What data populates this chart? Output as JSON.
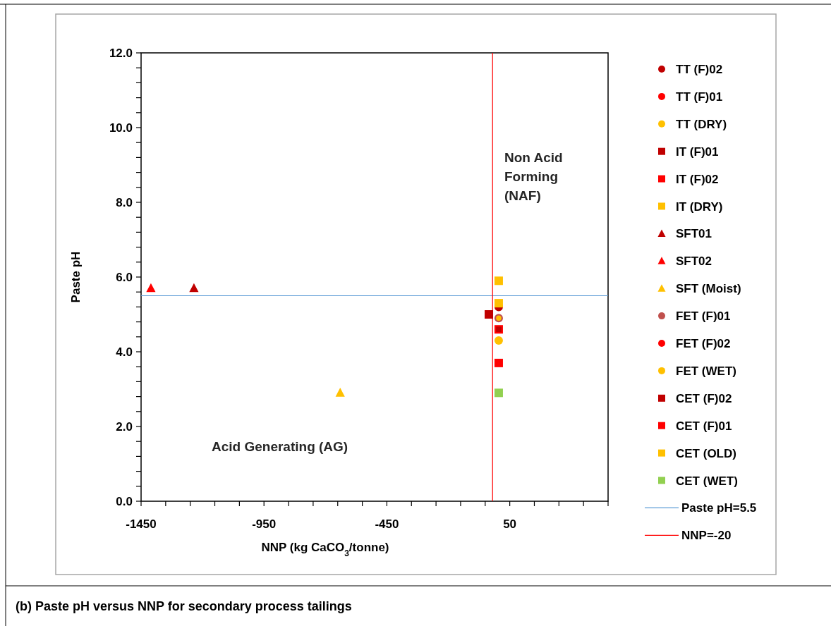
{
  "chart_data": {
    "type": "scatter",
    "title": "(b)  Paste pH versus NNP for secondary process tailings",
    "xlabel": "NNP  (kg CaCO$_{3}$/tonne)",
    "ylabel": "Paste pH",
    "xlim": [
      -1450,
      450
    ],
    "ylim": [
      0,
      12
    ],
    "xticks": [
      -1450,
      {
        "value": -1350,
        "label": null
      },
      {
        "value": -1250,
        "label": null
      },
      {
        "value": -1150,
        "label": null
      },
      {
        "value": -1050,
        "label": null
      },
      -950,
      {
        "value": -850,
        "label": null
      },
      {
        "value": -750,
        "label": null
      },
      {
        "value": -650,
        "label": null
      },
      {
        "value": -550,
        "label": null
      },
      -450,
      {
        "value": -350,
        "label": null
      },
      {
        "value": -250,
        "label": null
      },
      {
        "value": -150,
        "label": null
      },
      {
        "value": -50,
        "label": null
      },
      50,
      {
        "value": 150,
        "label": null
      },
      {
        "value": 250,
        "label": null
      },
      {
        "value": 350,
        "label": null
      },
      {
        "value": 450,
        "label": null
      }
    ],
    "yticks": [
      {
        "value": 0,
        "label": "0.0"
      },
      {
        "value": 0.4,
        "label": null
      },
      {
        "value": 0.8,
        "label": null
      },
      {
        "value": 1.2,
        "label": null
      },
      {
        "value": 1.6,
        "label": null
      },
      {
        "value": 2,
        "label": "2.0"
      },
      {
        "value": 2.4,
        "label": null
      },
      {
        "value": 2.8,
        "label": null
      },
      {
        "value": 3.2,
        "label": null
      },
      {
        "value": 3.6,
        "label": null
      },
      {
        "value": 4,
        "label": "4.0"
      },
      {
        "value": 4.4,
        "label": null
      },
      {
        "value": 4.8,
        "label": null
      },
      {
        "value": 5.2,
        "label": null
      },
      {
        "value": 5.6,
        "label": null
      },
      {
        "value": 6,
        "label": "6.0"
      },
      {
        "value": 6.4,
        "label": null
      },
      {
        "value": 6.8,
        "label": null
      },
      {
        "value": 7.2,
        "label": null
      },
      {
        "value": 7.6,
        "label": null
      },
      {
        "value": 8,
        "label": "8.0"
      },
      {
        "value": 8.4,
        "label": null
      },
      {
        "value": 8.8,
        "label": null
      },
      {
        "value": 9.2,
        "label": null
      },
      {
        "value": 9.6,
        "label": null
      },
      {
        "value": 10,
        "label": "10.0"
      },
      {
        "value": 10.4,
        "label": null
      },
      {
        "value": 10.8,
        "label": null
      },
      {
        "value": 11.2,
        "label": null
      },
      {
        "value": 11.6,
        "label": null
      },
      {
        "value": 12,
        "label": "12.0"
      }
    ],
    "grid": false,
    "legend": "right",
    "series": [
      {
        "name": "TT (F)02",
        "color": "#c00000",
        "marker": "circle",
        "x": [
          5
        ],
        "values": [
          5.2
        ]
      },
      {
        "name": "TT (F)01",
        "color": "#ff0000",
        "marker": "circle",
        "x": [
          null
        ],
        "values": [
          null
        ]
      },
      {
        "name": "TT (DRY)",
        "color": "#ffc000",
        "marker": "circle",
        "x": [
          5
        ],
        "values": [
          4.3
        ]
      },
      {
        "name": "IT (F)01",
        "color": "#c00000",
        "marker": "square",
        "x": [
          -35
        ],
        "values": [
          5.0
        ]
      },
      {
        "name": "IT (F)02",
        "color": "#ff0000",
        "marker": "square",
        "x": [
          5
        ],
        "values": [
          4.6
        ]
      },
      {
        "name": "IT (DRY)",
        "color": "#ffc000",
        "marker": "square",
        "x": [
          5
        ],
        "values": [
          5.3
        ]
      },
      {
        "name": "SFT01",
        "color": "#c00000",
        "marker": "triangle",
        "x": [
          -1235
        ],
        "values": [
          5.7
        ]
      },
      {
        "name": "SFT02",
        "color": "#ff0000",
        "marker": "triangle",
        "x": [
          -1410
        ],
        "values": [
          5.7
        ]
      },
      {
        "name": "SFT (Moist)",
        "color": "#ffc000",
        "marker": "triangle",
        "x": [
          -640
        ],
        "values": [
          2.9
        ]
      },
      {
        "name": "FET (F)01",
        "color": "#c0504d",
        "marker": "circle",
        "x": [
          5
        ],
        "values": [
          4.9
        ]
      },
      {
        "name": "FET (F)02",
        "color": "#ff0000",
        "marker": "circle",
        "x": [
          null
        ],
        "values": [
          null
        ]
      },
      {
        "name": "FET (WET)",
        "color": "#ffc000",
        "marker": "circle",
        "x": [
          5
        ],
        "values": [
          4.9
        ]
      },
      {
        "name": "CET (F)02",
        "color": "#c00000",
        "marker": "square",
        "x": [
          5
        ],
        "values": [
          4.6
        ]
      },
      {
        "name": "CET (F)01",
        "color": "#ff0000",
        "marker": "square",
        "x": [
          5
        ],
        "values": [
          3.7
        ]
      },
      {
        "name": "CET (OLD)",
        "color": "#ffc000",
        "marker": "square",
        "x": [
          5
        ],
        "values": [
          5.9
        ]
      },
      {
        "name": "CET (WET)",
        "color": "#92d050",
        "marker": "square",
        "x": [
          5
        ],
        "values": [
          2.9
        ]
      }
    ],
    "ref_lines": [
      {
        "axis": "y",
        "value": 5.5,
        "label": "Paste pH=5.5",
        "color": "#5b9bd5"
      },
      {
        "axis": "x",
        "value": -20,
        "label": "NNP=-20",
        "color": "#ff0000"
      }
    ],
    "annotations": [
      "Non Acid Forming (NAF)",
      "Acid Generating (AG)"
    ]
  }
}
